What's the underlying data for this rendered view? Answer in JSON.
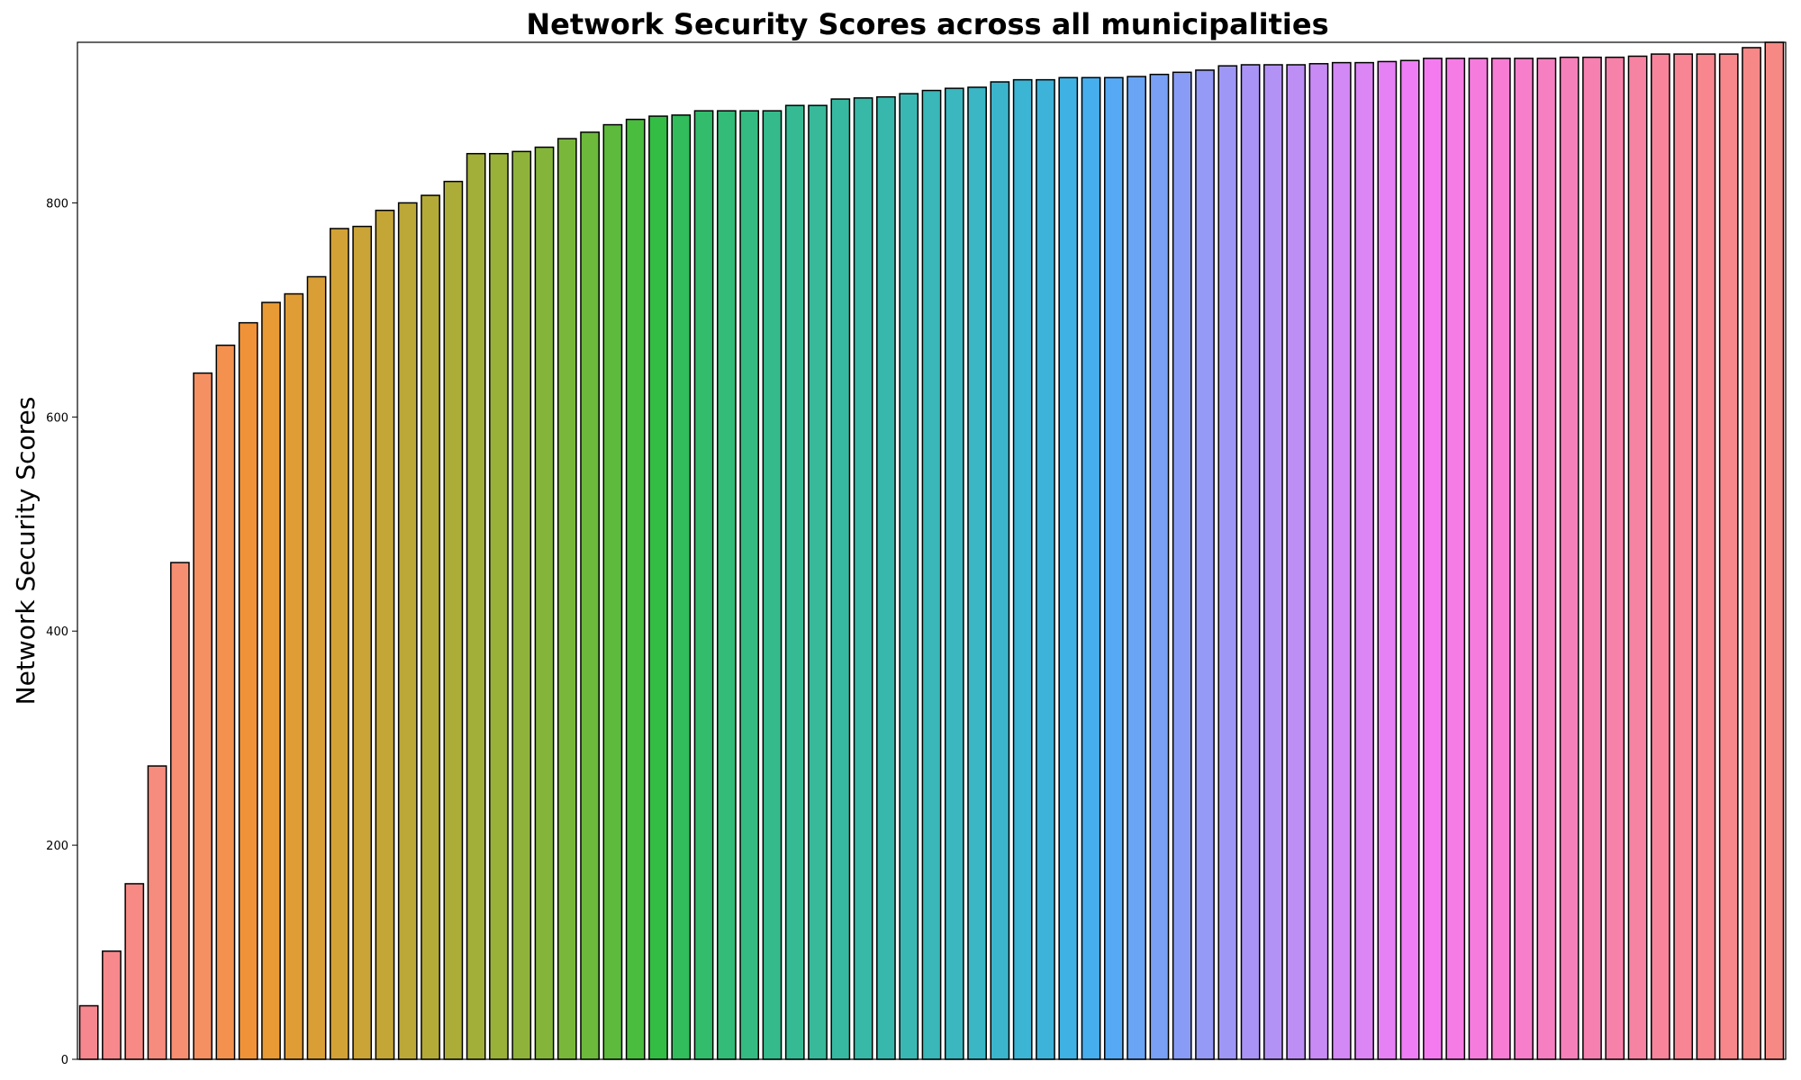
{
  "chart_data": {
    "type": "bar",
    "title": "Network Security Scores across all municipalities",
    "xlabel": "",
    "ylabel": "Network Security Scores",
    "ylim": [
      0,
      950
    ],
    "yticks": [
      0,
      200,
      400,
      600,
      800
    ],
    "x_tick_labels_visible": false,
    "grid": false,
    "legend": "none",
    "bar_edge_color": "#000000",
    "values": [
      50,
      101,
      164,
      274,
      464,
      641,
      667,
      688,
      707,
      715,
      731,
      776,
      778,
      793,
      800,
      807,
      820,
      846,
      846,
      848,
      852,
      860,
      866,
      873,
      878,
      881,
      882,
      886,
      886,
      886,
      886,
      891,
      891,
      897,
      898,
      899,
      902,
      905,
      907,
      908,
      913,
      915,
      915,
      917,
      917,
      917,
      918,
      920,
      922,
      924,
      928,
      929,
      929,
      929,
      930,
      931,
      931,
      932,
      933,
      935,
      935,
      935,
      935,
      935,
      935,
      936,
      936,
      936,
      937,
      939,
      939,
      939,
      939,
      945,
      950
    ],
    "colors": [
      "#f7878f",
      "#f7898c",
      "#f78a85",
      "#f68c7e",
      "#f68e72",
      "#f59062",
      "#f4914f",
      "#f09238",
      "#e89a34",
      "#e09d35",
      "#d99f36",
      "#d2a236",
      "#cba437",
      "#c4a637",
      "#bca838",
      "#b4aa38",
      "#abad38",
      "#a2af38",
      "#99b139",
      "#8fb33a",
      "#84b53a",
      "#79b73b",
      "#6cb93b",
      "#5dba3c",
      "#4abc3e",
      "#33bd44",
      "#32bc5c",
      "#32bc6c",
      "#33bb78",
      "#34bb82",
      "#35ba8b",
      "#36ba93",
      "#37b99a",
      "#37b9a1",
      "#38b8a7",
      "#38b8ad",
      "#39b8b3",
      "#39b7b9",
      "#3ab7bf",
      "#3ab6c5",
      "#3bb5cc",
      "#3cb4d3",
      "#3eb3da",
      "#40b1e3",
      "#46aeed",
      "#56a9f4",
      "#69a4f5",
      "#79a0f5",
      "#889cf5",
      "#949af5",
      "#9f97f5",
      "#a994f5",
      "#b392f5",
      "#bd8ff5",
      "#c88bf5",
      "#d288f5",
      "#dc85f5",
      "#e681f5",
      "#ef7df5",
      "#f47bef",
      "#f57be5",
      "#f57cdc",
      "#f67dd3",
      "#f67eca",
      "#f67fc1",
      "#f680b9",
      "#f681b1",
      "#f782a9",
      "#f783a2",
      "#f7849b",
      "#f78594",
      "#f7868f",
      "#f7878b",
      "#f78888",
      "#f78985"
    ]
  }
}
